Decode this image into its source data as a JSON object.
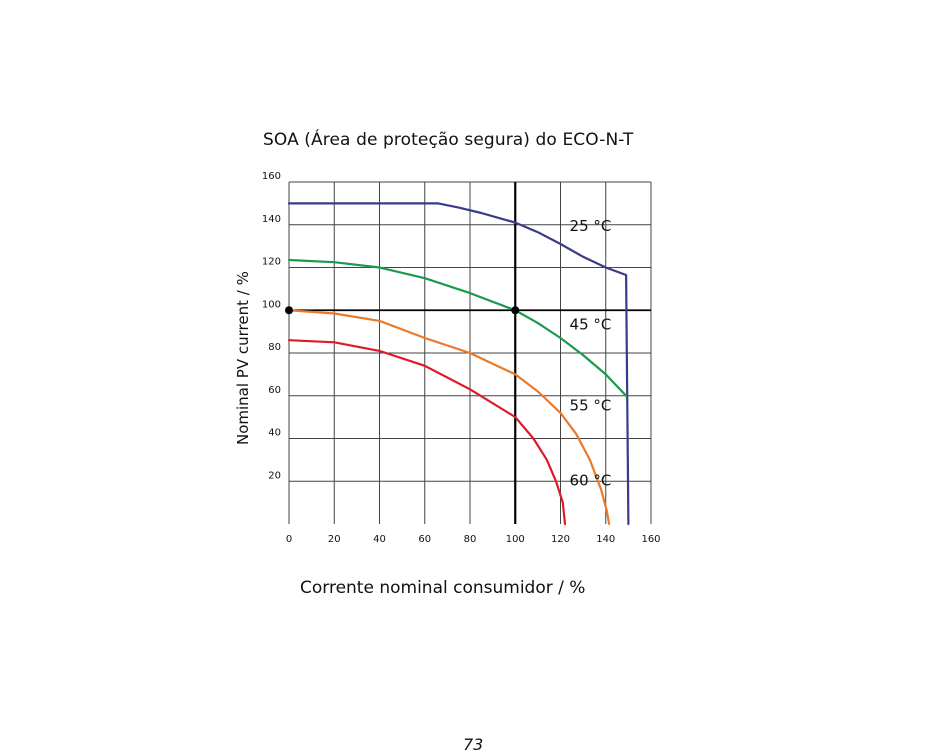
{
  "page": {
    "page_number": "73"
  },
  "chart_data": {
    "type": "line",
    "title": "SOA (Área de proteção segura) do ECO-N-T",
    "xlabel": "Corrente nominal consumidor / %",
    "ylabel": "Nominal PV current / %",
    "xlim": [
      0,
      160
    ],
    "ylim": [
      0,
      160
    ],
    "x_ticks": [
      "0",
      "20",
      "40",
      "60",
      "80",
      "100",
      "120",
      "140",
      "160"
    ],
    "y_ticks": [
      "20",
      "40",
      "60",
      "80",
      "100",
      "120",
      "140",
      "160"
    ],
    "grid": true,
    "reference_lines": {
      "x": 100,
      "y": 100
    },
    "reference_points": [
      {
        "x": 0,
        "y": 100
      },
      {
        "x": 100,
        "y": 100
      }
    ],
    "series": [
      {
        "name": "25 °C",
        "color": "#3a3a8c",
        "label_at": {
          "x": 124,
          "y": 137
        },
        "points": [
          [
            0,
            150
          ],
          [
            30,
            150
          ],
          [
            66,
            150
          ],
          [
            75,
            148
          ],
          [
            85,
            145.5
          ],
          [
            95,
            142.5
          ],
          [
            100,
            141
          ],
          [
            110,
            136.5
          ],
          [
            120,
            131
          ],
          [
            130,
            125
          ],
          [
            140,
            120
          ],
          [
            149,
            116.5
          ],
          [
            150,
            0
          ]
        ]
      },
      {
        "name": "45 °C",
        "color": "#1a9a4a",
        "label_at": {
          "x": 124,
          "y": 91
        },
        "points": [
          [
            0,
            123.5
          ],
          [
            20,
            122.5
          ],
          [
            40,
            120
          ],
          [
            60,
            115
          ],
          [
            80,
            108
          ],
          [
            100,
            100
          ],
          [
            110,
            94
          ],
          [
            120,
            87
          ],
          [
            130,
            79
          ],
          [
            140,
            70
          ],
          [
            149,
            60
          ]
        ]
      },
      {
        "name": "55 °C",
        "color": "#e87a2a",
        "label_at": {
          "x": 124,
          "y": 53
        },
        "points": [
          [
            0,
            100
          ],
          [
            20,
            98.5
          ],
          [
            40,
            95
          ],
          [
            60,
            87
          ],
          [
            80,
            80
          ],
          [
            90,
            75
          ],
          [
            100,
            70
          ],
          [
            110,
            62
          ],
          [
            120,
            52
          ],
          [
            127,
            42
          ],
          [
            133,
            30
          ],
          [
            138,
            16
          ],
          [
            140.5,
            6
          ],
          [
            141.5,
            0
          ]
        ]
      },
      {
        "name": "60 °C",
        "color": "#dd1a2a",
        "label_at": {
          "x": 124,
          "y": 18
        },
        "points": [
          [
            0,
            86
          ],
          [
            20,
            85
          ],
          [
            40,
            81
          ],
          [
            60,
            74
          ],
          [
            80,
            63
          ],
          [
            100,
            50
          ],
          [
            108,
            40
          ],
          [
            114,
            30
          ],
          [
            118,
            20
          ],
          [
            121,
            10
          ],
          [
            122,
            0
          ]
        ]
      }
    ]
  }
}
